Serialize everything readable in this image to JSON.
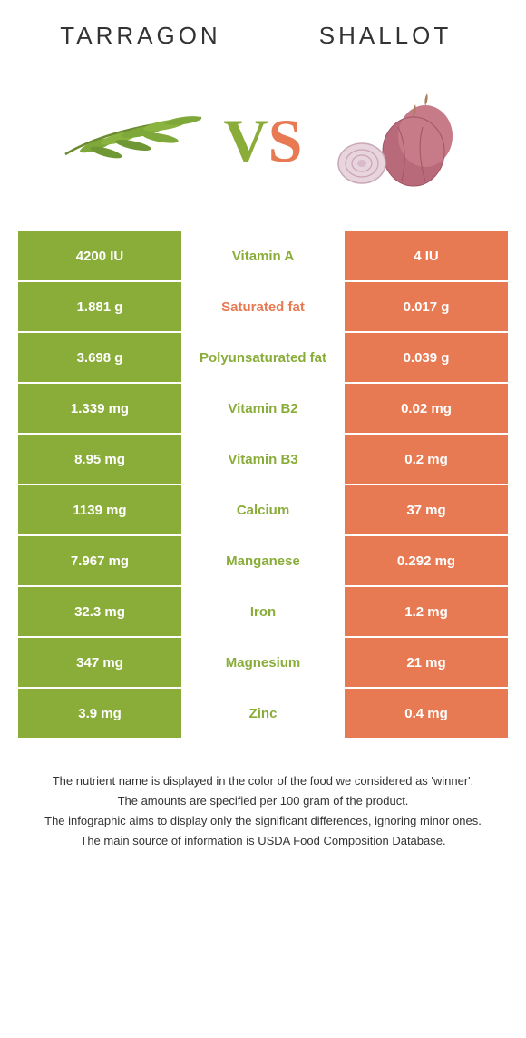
{
  "food_left": {
    "title": "TARRAGON",
    "color": "#8aad3a"
  },
  "food_right": {
    "title": "SHALLOT",
    "color": "#e77a52"
  },
  "vs": {
    "letter1": "V",
    "letter2": "S"
  },
  "table": {
    "left_color": "#8aad3a",
    "right_color": "#e77a52",
    "rows": [
      {
        "left": "4200 IU",
        "nutrient": "Vitamin A",
        "right": "4 IU",
        "winner": "left"
      },
      {
        "left": "1.881 g",
        "nutrient": "Saturated fat",
        "right": "0.017 g",
        "winner": "right"
      },
      {
        "left": "3.698 g",
        "nutrient": "Polyunsaturated fat",
        "right": "0.039 g",
        "winner": "left"
      },
      {
        "left": "1.339 mg",
        "nutrient": "Vitamin B2",
        "right": "0.02 mg",
        "winner": "left"
      },
      {
        "left": "8.95 mg",
        "nutrient": "Vitamin B3",
        "right": "0.2 mg",
        "winner": "left"
      },
      {
        "left": "1139 mg",
        "nutrient": "Calcium",
        "right": "37 mg",
        "winner": "left"
      },
      {
        "left": "7.967 mg",
        "nutrient": "Manganese",
        "right": "0.292 mg",
        "winner": "left"
      },
      {
        "left": "32.3 mg",
        "nutrient": "Iron",
        "right": "1.2 mg",
        "winner": "left"
      },
      {
        "left": "347 mg",
        "nutrient": "Magnesium",
        "right": "21 mg",
        "winner": "left"
      },
      {
        "left": "3.9 mg",
        "nutrient": "Zinc",
        "right": "0.4 mg",
        "winner": "left"
      }
    ]
  },
  "footnotes": {
    "l1": "The nutrient name is displayed in the color of the food we considered as 'winner'.",
    "l2": "The amounts are specified per 100 gram of the product.",
    "l3": "The infographic aims to display only the significant differences, ignoring minor ones.",
    "l4": "The main source of information is USDA Food Composition Database."
  }
}
